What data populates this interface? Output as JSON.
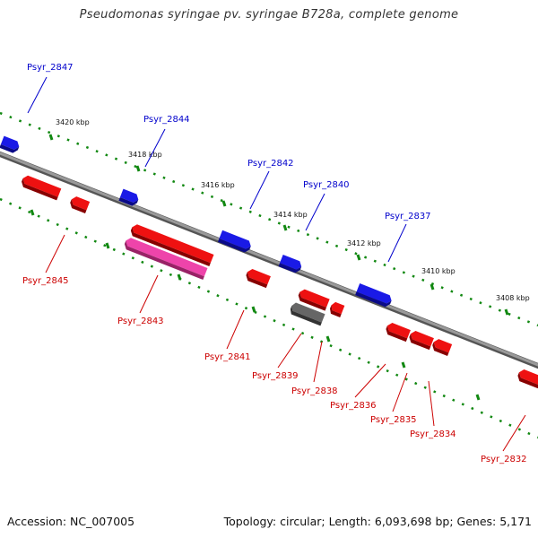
{
  "title": "Pseudomonas syringae pv. syringae B728a, complete genome",
  "footer": {
    "accession": "Accession: NC_007005",
    "topology": "Topology: circular; Length: 6,093,698 bp; Genes: 5,171"
  },
  "colors": {
    "forward_gene": "#1a1ae6",
    "reverse_gene": "#ee1111",
    "highlight_gene": "#ee44aa",
    "other_gene": "#666666",
    "backbone": "#888888",
    "tick": "#118811"
  },
  "kbp_ticks": [
    "3420 kbp",
    "3418 kbp",
    "3416 kbp",
    "3414 kbp",
    "3412 kbp",
    "3410 kbp",
    "3408 kbp"
  ],
  "genes_upper": [
    {
      "name": "Psyr_2847"
    },
    {
      "name": "Psyr_2844"
    },
    {
      "name": "Psyr_2842"
    },
    {
      "name": "Psyr_2840"
    },
    {
      "name": "Psyr_2837"
    }
  ],
  "genes_lower": [
    {
      "name": "Psyr_2845"
    },
    {
      "name": "Psyr_2843"
    },
    {
      "name": "Psyr_2841"
    },
    {
      "name": "Psyr_2839"
    },
    {
      "name": "Psyr_2838"
    },
    {
      "name": "Psyr_2836"
    },
    {
      "name": "Psyr_2835"
    },
    {
      "name": "Psyr_2834"
    },
    {
      "name": "Psyr_2832"
    }
  ]
}
